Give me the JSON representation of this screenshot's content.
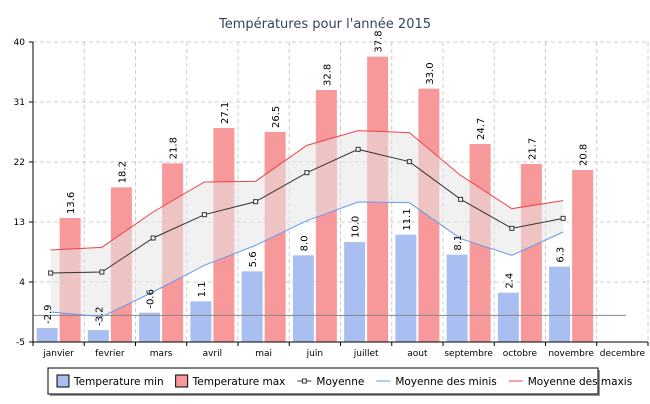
{
  "chart_data": {
    "type": "bar",
    "title": "Températures pour l'année 2015",
    "categories": [
      "janvier",
      "fevrier",
      "mars",
      "avril",
      "mai",
      "juin",
      "juillet",
      "aout",
      "septembre",
      "octobre",
      "novembre",
      "decembre"
    ],
    "ylim": [
      -5,
      40
    ],
    "yticks": [
      -5,
      4,
      13,
      22,
      31,
      40
    ],
    "xlabel": "",
    "ylabel": "",
    "grid": true,
    "legend_position": "bottom",
    "series": [
      {
        "name": "Temperature min",
        "kind": "bar",
        "color": "#a9bff2",
        "values": [
          -2.9,
          -3.2,
          -0.6,
          1.1,
          5.6,
          8.0,
          10.0,
          11.1,
          8.1,
          2.4,
          6.3,
          null
        ],
        "labels": [
          "-2.9",
          "-3.2",
          "-0.6",
          "1.1",
          "5.6",
          "8.0",
          "10.0",
          "11.1",
          "8.1",
          "2.4",
          "6.3",
          ""
        ]
      },
      {
        "name": "Temperature max",
        "kind": "bar",
        "color": "#f7999a",
        "values": [
          13.6,
          18.2,
          21.8,
          27.1,
          26.5,
          32.8,
          37.8,
          33.0,
          24.7,
          21.7,
          20.8,
          null
        ],
        "labels": [
          "13.6",
          "18.2",
          "21.8",
          "27.1",
          "26.5",
          "32.8",
          "37.8",
          "33.0",
          "24.7",
          "21.7",
          "20.8",
          ""
        ]
      },
      {
        "name": "Moyenne",
        "kind": "line",
        "color": "#333333",
        "values": [
          5.35,
          5.5,
          10.6,
          14.1,
          16.05,
          20.4,
          23.9,
          22.05,
          16.4,
          12.05,
          13.55,
          null
        ]
      },
      {
        "name": "Moyenne des minis",
        "kind": "line",
        "color": "#6699ee",
        "values": [
          -0.5,
          -1.2,
          2.5,
          6.5,
          9.5,
          13.2,
          16.0,
          15.9,
          10.5,
          8.0,
          11.5,
          null
        ]
      },
      {
        "name": "Moyenne des maxis",
        "kind": "line",
        "color": "#ee4444",
        "values": [
          8.8,
          9.2,
          14.5,
          19.0,
          19.1,
          24.5,
          26.7,
          26.4,
          20.0,
          15.0,
          16.2,
          null
        ]
      }
    ],
    "reference_line": {
      "value": -1,
      "color": "#888888"
    }
  },
  "legend": {
    "items": [
      {
        "label": "Temperature min",
        "symbol": "box",
        "color": "#a9bff2"
      },
      {
        "label": "Temperature max",
        "symbol": "box",
        "color": "#f7999a"
      },
      {
        "label": "Moyenne",
        "symbol": "marker",
        "color": "#333333"
      },
      {
        "label": "Moyenne des minis",
        "symbol": "line",
        "color": "#6699ee"
      },
      {
        "label": "Moyenne des maxis",
        "symbol": "line",
        "color": "#ee4444"
      }
    ]
  },
  "colors": {
    "title": "#36435e",
    "grid": "#cccccc",
    "axis": "#000000",
    "band_fill": "#e6e6e6"
  }
}
